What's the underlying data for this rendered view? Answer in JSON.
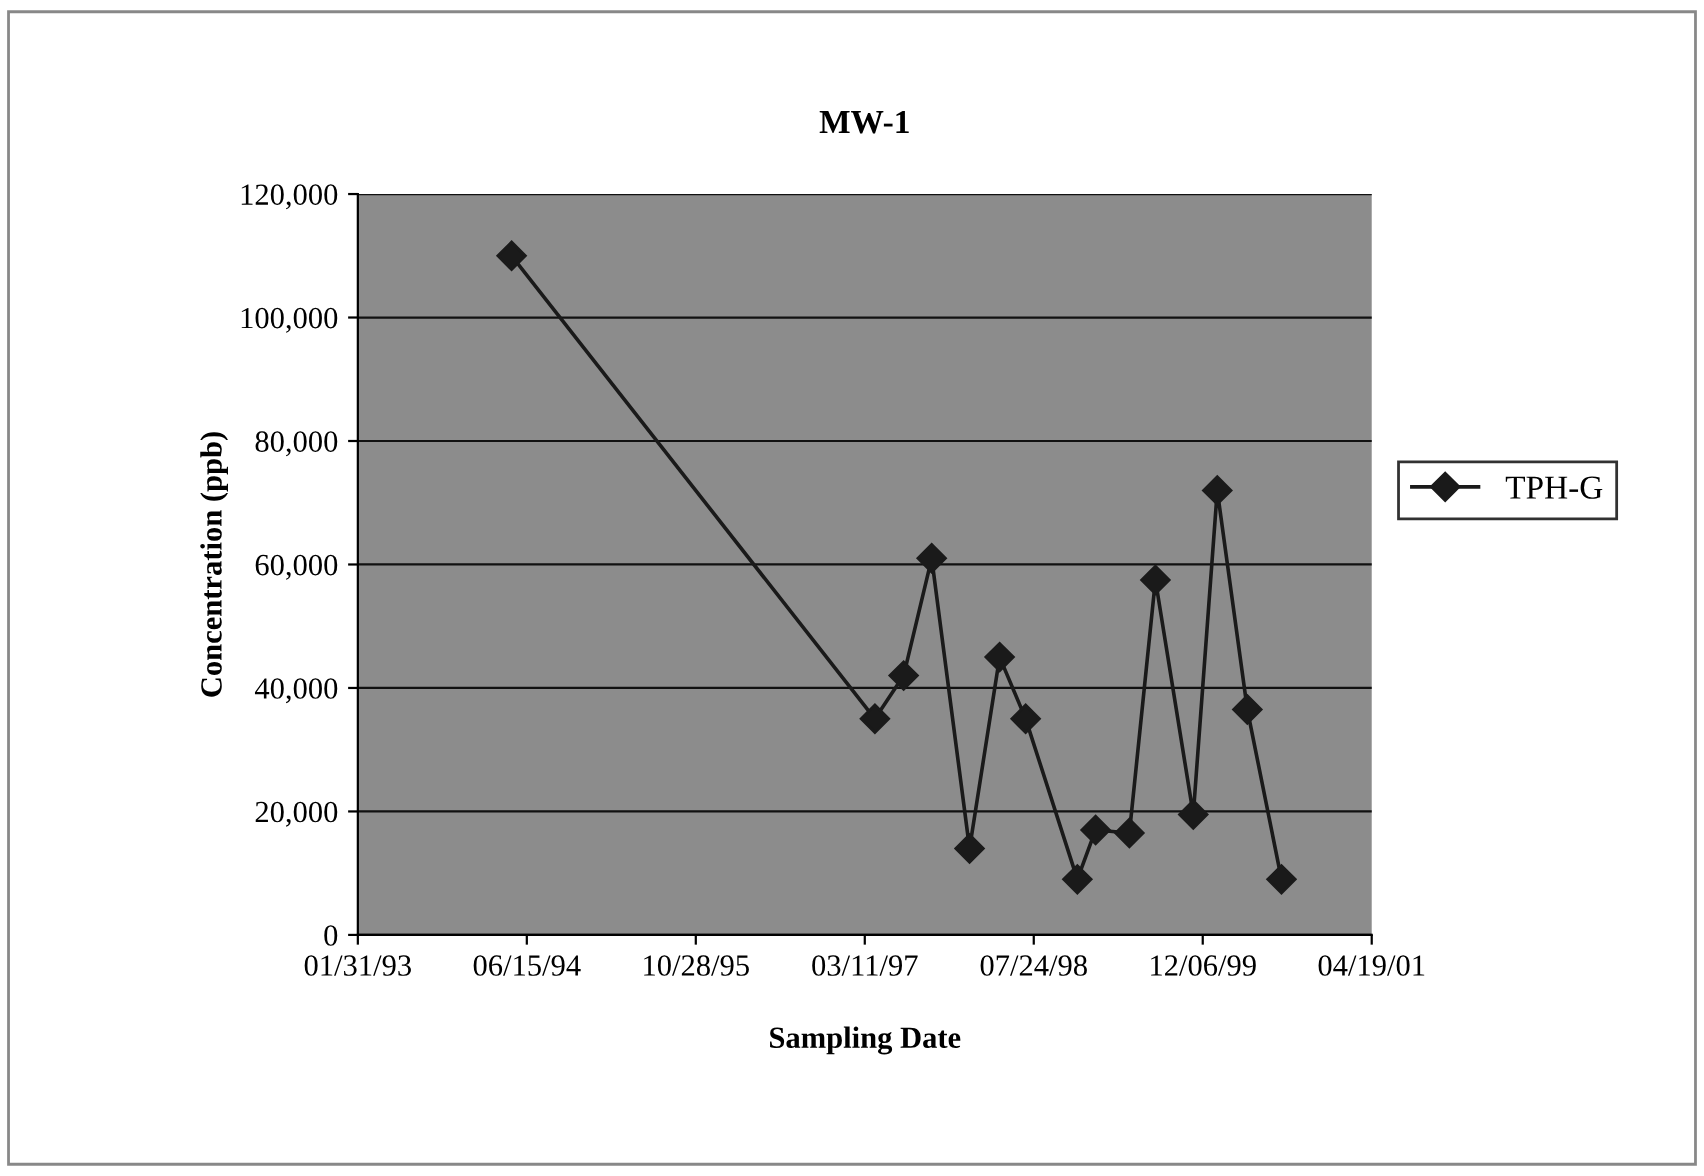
{
  "chart_data": {
    "type": "line",
    "title": "MW-1",
    "xlabel": "Sampling Date",
    "ylabel": "Concentration (ppb)",
    "x": [
      "1994-05-01",
      "1997-04-10",
      "1997-07-04",
      "1997-09-25",
      "1998-01-15",
      "1998-04-14",
      "1998-06-30",
      "1998-11-30",
      "1999-01-23",
      "1999-05-03",
      "1999-07-19",
      "1999-11-08",
      "2000-01-18",
      "2000-04-16",
      "2000-07-26"
    ],
    "series": [
      {
        "name": "TPH-G",
        "color": "#1a1a1a",
        "values": [
          110000,
          35000,
          42000,
          61000,
          14000,
          45000,
          35000,
          9000,
          17000,
          16500,
          57500,
          19500,
          72000,
          36500,
          9000
        ]
      }
    ],
    "xlim": [
      "1993-01-31",
      "2001-04-19"
    ],
    "xticks": [
      {
        "value": "1993-01-31",
        "label": "01/31/93"
      },
      {
        "value": "1994-06-15",
        "label": "06/15/94"
      },
      {
        "value": "1995-10-28",
        "label": "10/28/95"
      },
      {
        "value": "1997-03-11",
        "label": "03/11/97"
      },
      {
        "value": "1998-07-24",
        "label": "07/24/98"
      },
      {
        "value": "1999-12-06",
        "label": "12/06/99"
      },
      {
        "value": "2001-04-19",
        "label": "04/19/01"
      }
    ],
    "ylim": [
      0,
      120000
    ],
    "yticks": [
      {
        "value": 0,
        "label": "0"
      },
      {
        "value": 20000,
        "label": "20,000"
      },
      {
        "value": 40000,
        "label": "40,000"
      },
      {
        "value": 60000,
        "label": "60,000"
      },
      {
        "value": 80000,
        "label": "80,000"
      },
      {
        "value": 100000,
        "label": "100,000"
      },
      {
        "value": 120000,
        "label": "120,000"
      }
    ],
    "grid": "y",
    "legend": "right",
    "marker": "diamond",
    "line_style": "solid"
  }
}
